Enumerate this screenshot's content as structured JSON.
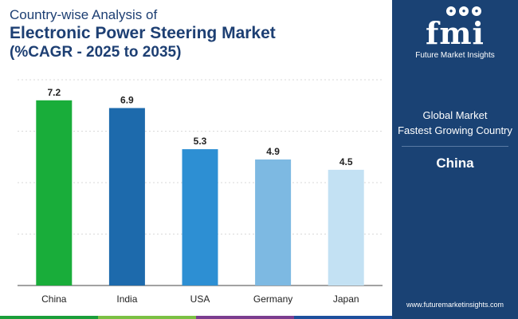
{
  "title": {
    "line1": "Country-wise Analysis of",
    "line2": "Electronic Power Steering Market",
    "line3": "(%CAGR - 2025 to 2035)"
  },
  "chart_data": {
    "type": "bar",
    "title": "Country-wise Analysis of Electronic Power Steering Market (%CAGR - 2025 to 2035)",
    "xlabel": "",
    "ylabel": "",
    "categories": [
      "China",
      "India",
      "USA",
      "Germany",
      "Japan"
    ],
    "values": [
      7.2,
      6.9,
      5.3,
      4.9,
      4.5
    ],
    "value_labels": [
      "7.2",
      "6.9",
      "5.3",
      "4.9",
      "4.5"
    ],
    "colors": [
      "#19ad3a",
      "#1d6aac",
      "#2d8fd3",
      "#7db9e2",
      "#c3e1f3"
    ],
    "ylim": [
      0,
      8
    ],
    "grid": true
  },
  "panel": {
    "logo_text": "fmi",
    "logo_subtitle": "Future Market Insights",
    "line1": "Global Market",
    "line2": "Fastest Growing Country",
    "country": "China",
    "website": "www.futuremarketinsights.com"
  },
  "footer_colors": [
    "#1a9e3a",
    "#7ac043",
    "#7b3d8f",
    "#1d4f9c"
  ]
}
